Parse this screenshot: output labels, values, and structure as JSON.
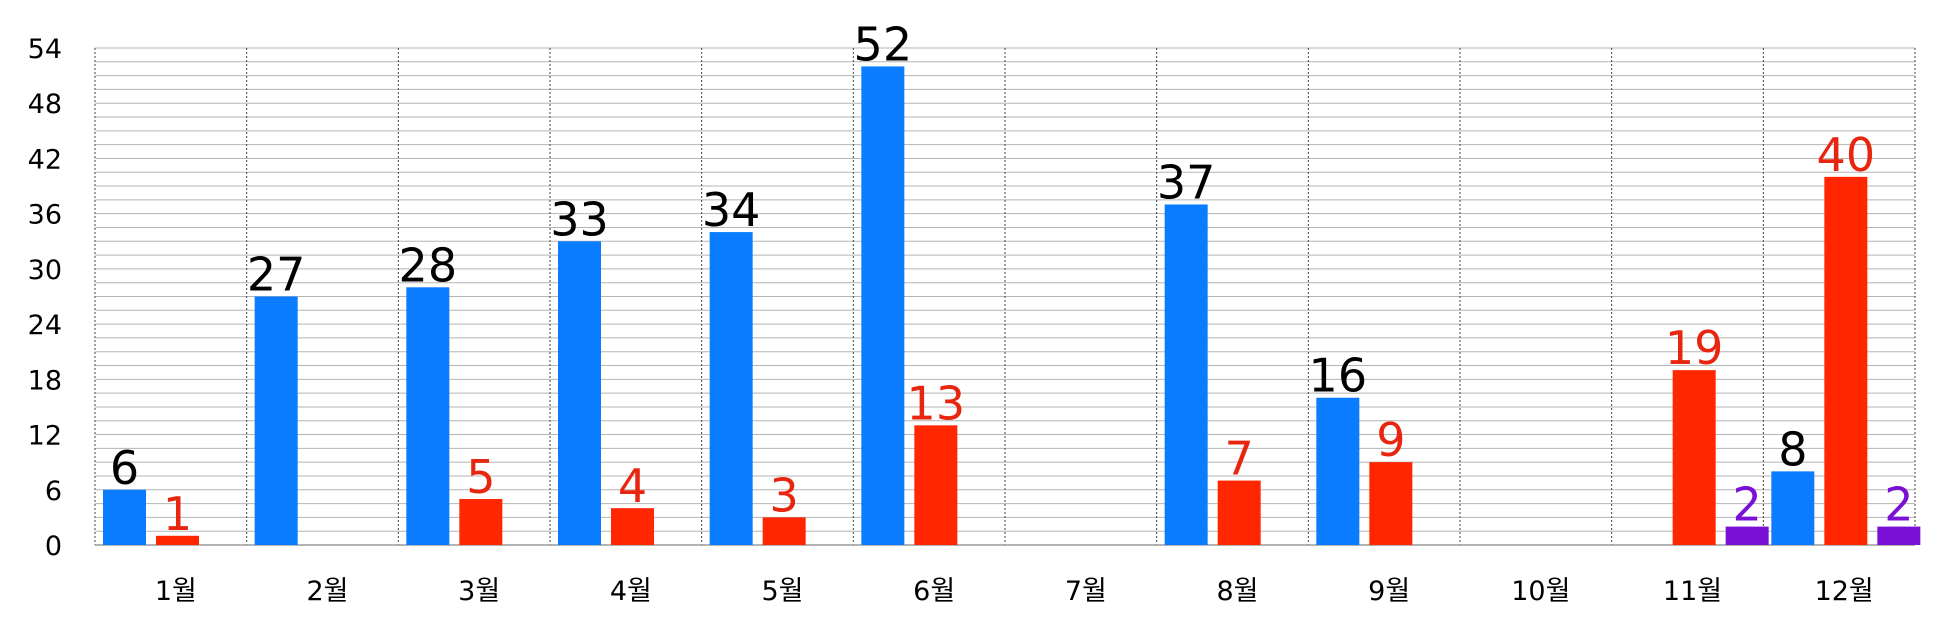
{
  "chart_data": {
    "type": "bar",
    "categories": [
      "1월",
      "2월",
      "3월",
      "4월",
      "5월",
      "6월",
      "7월",
      "8월",
      "9월",
      "10월",
      "11월",
      "12월"
    ],
    "series": [
      {
        "color": "#0a7cff",
        "label_color": "#000000",
        "values": [
          6,
          27,
          28,
          33,
          34,
          52,
          null,
          37,
          16,
          null,
          null,
          8
        ]
      },
      {
        "color": "#ff2600",
        "label_color": "#e8260f",
        "values": [
          1,
          null,
          5,
          4,
          3,
          13,
          null,
          7,
          9,
          null,
          19,
          40
        ]
      },
      {
        "color": "#7a10d6",
        "label_color": "#7a10d6",
        "values": [
          null,
          null,
          null,
          null,
          null,
          null,
          null,
          null,
          null,
          null,
          2,
          2
        ]
      }
    ],
    "y_ticks": [
      "0",
      "6",
      "12",
      "18",
      "24",
      "30",
      "36",
      "42",
      "48",
      "54"
    ],
    "ylim": [
      0,
      54
    ],
    "minor_gridline_step": 1.5,
    "grid": true,
    "legend": "none",
    "title": "",
    "xlabel": "",
    "ylabel": ""
  }
}
